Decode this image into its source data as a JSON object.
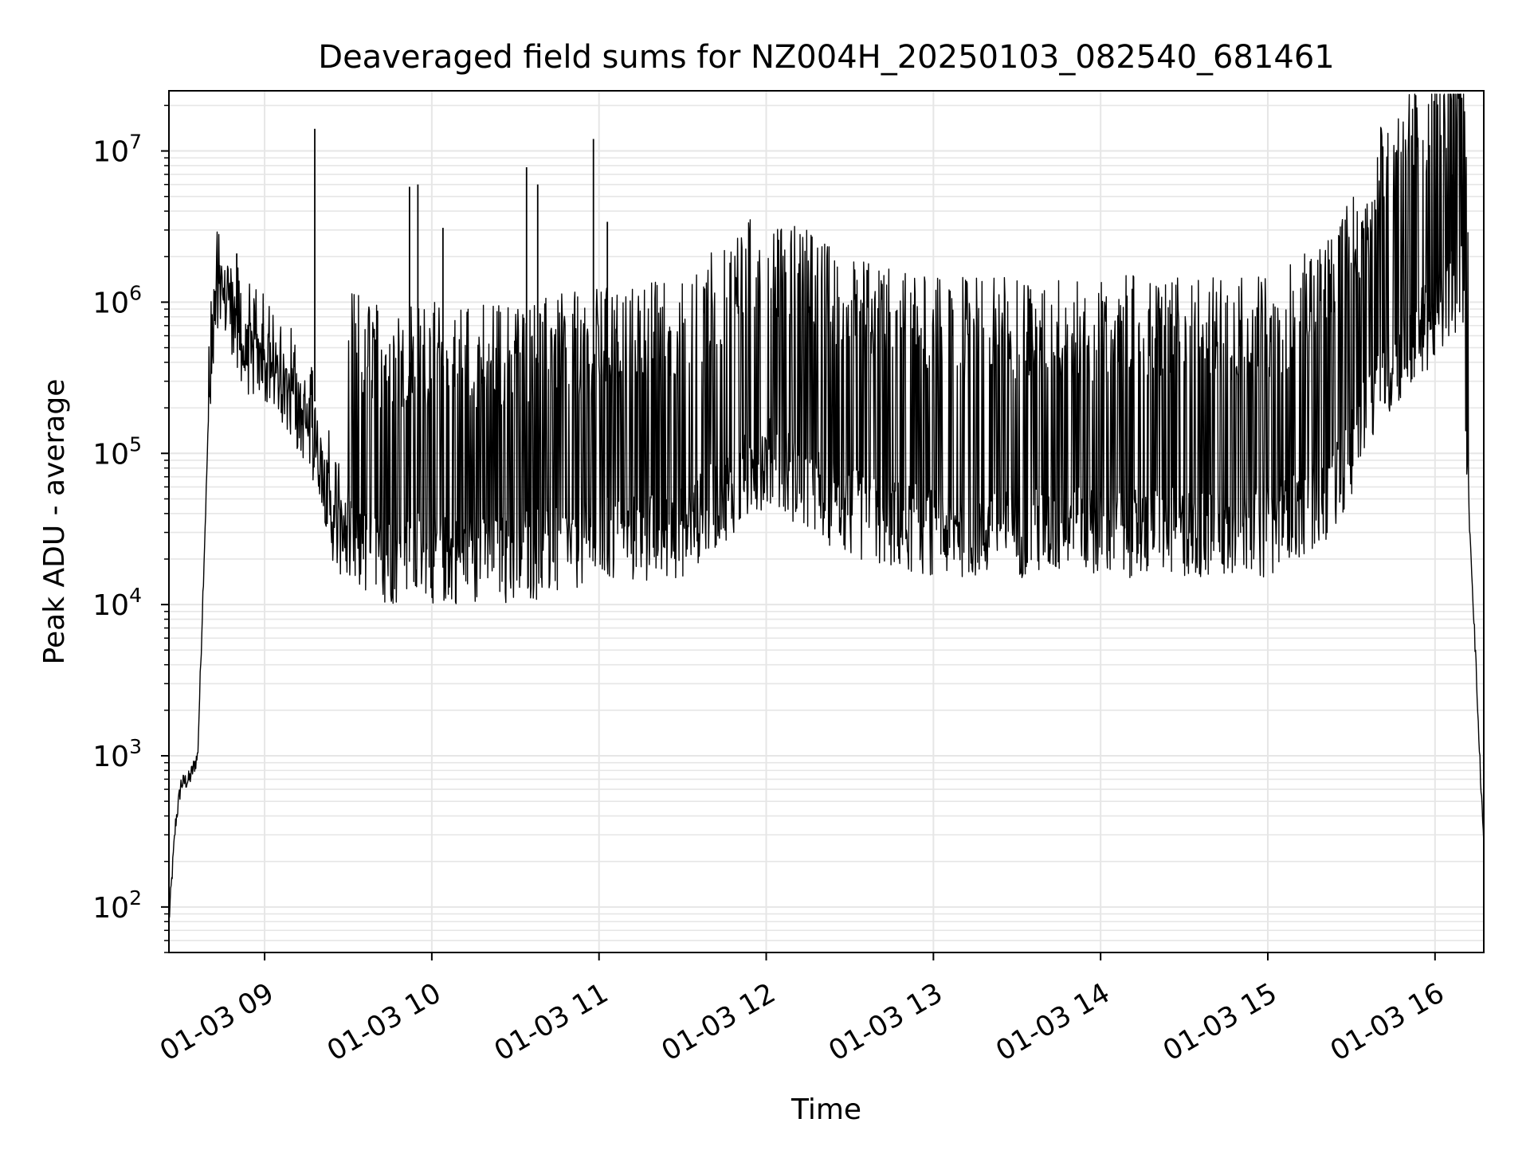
{
  "chart_data": {
    "type": "line",
    "title": "Deaveraged field sums for NZ004H_20250103_082540_681461",
    "xlabel": "Time",
    "ylabel": "Peak ADU - average",
    "yscale": "log",
    "ylim": [
      50,
      25000000
    ],
    "xlim": [
      "2025-01-03 08:25:40",
      "2025-01-03 16:17:30"
    ],
    "grid": true,
    "x_tick_labels": [
      "01-03 09",
      "01-03 10",
      "01-03 11",
      "01-03 12",
      "01-03 13",
      "01-03 14",
      "01-03 15",
      "01-03 16"
    ],
    "y_tick_labels": [
      {
        "base": "10",
        "exp": "2"
      },
      {
        "base": "10",
        "exp": "3"
      },
      {
        "base": "10",
        "exp": "4"
      },
      {
        "base": "10",
        "exp": "5"
      },
      {
        "base": "10",
        "exp": "6"
      },
      {
        "base": "10",
        "exp": "7"
      }
    ],
    "series": [
      {
        "color": "#000000",
        "x": [
          "2025-01-03 08:25:40",
          "2025-01-03 08:28:00",
          "2025-01-03 08:30:00",
          "2025-01-03 08:33:00",
          "2025-01-03 08:36:00",
          "2025-01-03 08:40:00",
          "2025-01-03 08:43:00",
          "2025-01-03 08:45:00",
          "2025-01-03 08:47:00",
          "2025-01-03 08:49:00",
          "2025-01-03 08:50:00",
          "2025-01-03 08:52:00",
          "2025-01-03 08:56:00",
          "2025-01-03 09:00:00",
          "2025-01-03 09:05:00",
          "2025-01-03 09:10:00",
          "2025-01-03 09:15:00",
          "2025-01-03 09:20:00",
          "2025-01-03 09:25:00",
          "2025-01-03 09:30:00",
          "2025-01-03 09:35:00",
          "2025-01-03 09:40:00",
          "2025-01-03 09:50:00",
          "2025-01-03 10:00:00",
          "2025-01-03 10:30:00",
          "2025-01-03 11:00:00",
          "2025-01-03 11:30:00",
          "2025-01-03 12:00:00",
          "2025-01-03 12:30:00",
          "2025-01-03 13:00:00",
          "2025-01-03 13:30:00",
          "2025-01-03 14:00:00",
          "2025-01-03 14:30:00",
          "2025-01-03 15:00:00",
          "2025-01-03 15:20:00",
          "2025-01-03 15:30:00",
          "2025-01-03 15:40:00",
          "2025-01-03 15:50:00",
          "2025-01-03 16:00:00",
          "2025-01-03 16:05:00",
          "2025-01-03 16:10:00",
          "2025-01-03 16:12:00",
          "2025-01-03 16:14:00",
          "2025-01-03 16:16:00",
          "2025-01-03 16:17:30"
        ],
        "y": [
          80,
          350,
          650,
          700,
          1000,
          200000,
          900000,
          1000000,
          1000000,
          700000,
          500000,
          450000,
          400000,
          350000,
          300000,
          200000,
          150000,
          90000,
          30000,
          25000,
          22000,
          20000,
          20000,
          20000,
          20000,
          25000,
          30000,
          90000,
          40000,
          30000,
          30000,
          30000,
          30000,
          30000,
          50000,
          100000,
          300000,
          500000,
          800000,
          1000000,
          1500000,
          50000,
          8000,
          1000,
          260
        ]
      }
    ],
    "spikes": [
      {
        "x": "2025-01-03 08:50:00",
        "y": 2100000
      },
      {
        "x": "2025-01-03 09:18:00",
        "y": 14000000
      },
      {
        "x": "2025-01-03 09:52:00",
        "y": 5800000
      },
      {
        "x": "2025-01-03 09:55:00",
        "y": 6000000
      },
      {
        "x": "2025-01-03 10:04:00",
        "y": 3100000
      },
      {
        "x": "2025-01-03 10:34:00",
        "y": 7800000
      },
      {
        "x": "2025-01-03 10:38:00",
        "y": 6000000
      },
      {
        "x": "2025-01-03 10:58:00",
        "y": 12000000
      },
      {
        "x": "2025-01-03 11:03:00",
        "y": 3400000
      },
      {
        "x": "2025-01-03 16:06:00",
        "y": 7000000
      }
    ]
  }
}
